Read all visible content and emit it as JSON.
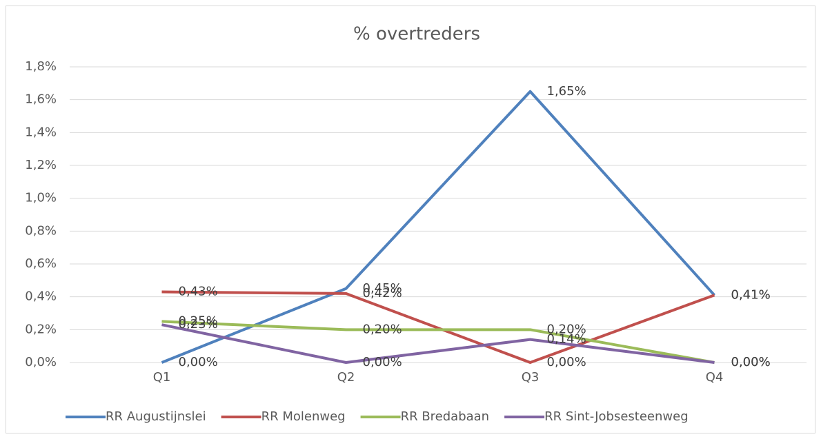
{
  "chart_data": {
    "type": "line",
    "title": "% overtreders",
    "categories": [
      "Q1",
      "Q2",
      "Q3",
      "Q4"
    ],
    "series": [
      {
        "name": "RR Augustijnslei",
        "color": "#4f81bd",
        "values": [
          0,
          0.45,
          1.65,
          0.41
        ],
        "value_labels": [
          "0,00%",
          "0,45%",
          "1,65%",
          "0,41%"
        ]
      },
      {
        "name": "RR Molenweg",
        "color": "#c0504d",
        "values": [
          0.43,
          0.42,
          0,
          0.41
        ],
        "value_labels": [
          "0,43%",
          "0,42%",
          "0,00%",
          "0,41%"
        ]
      },
      {
        "name": "RR Bredabaan",
        "color": "#9bbb59",
        "values": [
          0.25,
          0.2,
          0.2,
          0
        ],
        "value_labels": [
          "0,25%",
          "0,20%",
          "0,20%",
          "0,00%"
        ]
      },
      {
        "name": "RR Sint-Jobsesteenweg",
        "color": "#8064a2",
        "values": [
          0.23,
          0,
          0.14,
          0
        ],
        "value_labels": [
          "0,23%",
          "0,00%",
          "0,14%",
          "0,00%"
        ]
      }
    ],
    "ylim": [
      0,
      1.8
    ],
    "yticks": [
      {
        "value": 0,
        "label": "0,0%"
      },
      {
        "value": 0.2,
        "label": "0,2%"
      },
      {
        "value": 0.4,
        "label": "0,4%"
      },
      {
        "value": 0.6,
        "label": "0,6%"
      },
      {
        "value": 0.8,
        "label": "0,8%"
      },
      {
        "value": 1.0,
        "label": "1,0%"
      },
      {
        "value": 1.2,
        "label": "1,2%"
      },
      {
        "value": 1.4,
        "label": "1,4%"
      },
      {
        "value": 1.6,
        "label": "1,6%"
      },
      {
        "value": 1.8,
        "label": "1,8%"
      }
    ],
    "grid": true,
    "legend": "bottom"
  }
}
